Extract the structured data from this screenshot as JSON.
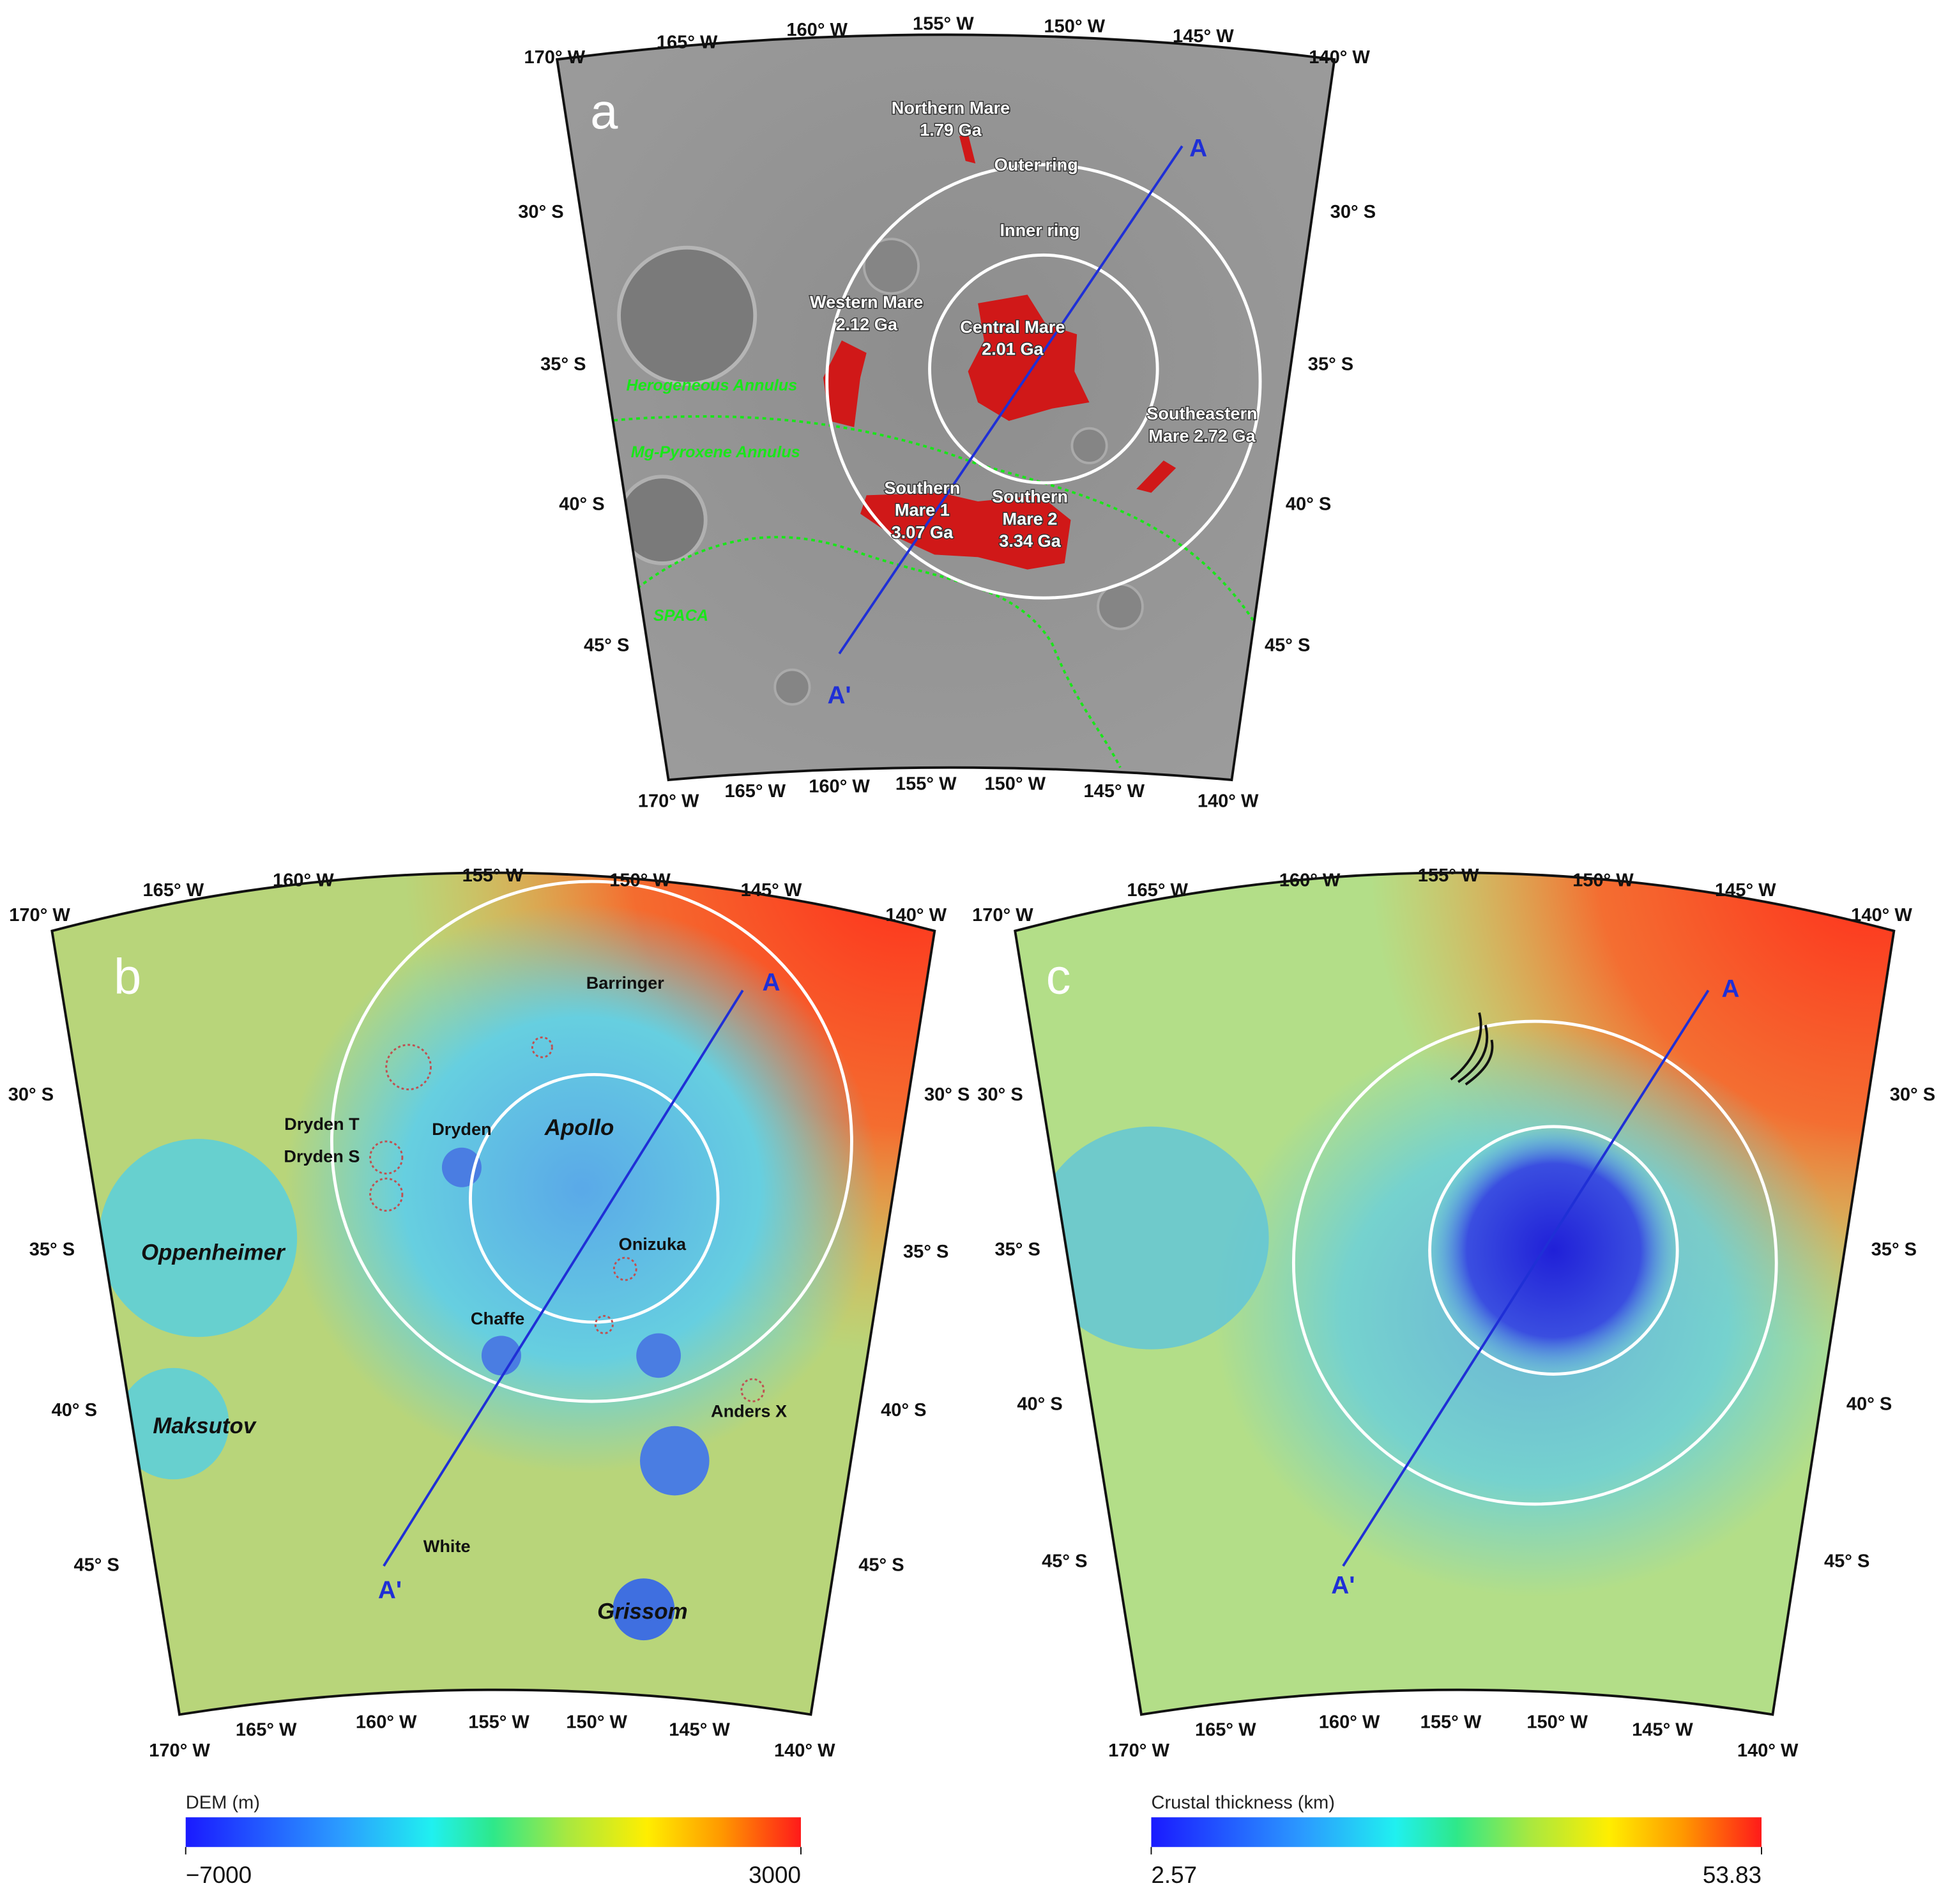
{
  "panels": [
    {
      "letter": "a",
      "lon_top": [
        "170° W",
        "165° W",
        "160° W",
        "155° W",
        "150° W",
        "145° W",
        "140° W"
      ],
      "lon_bottom": [
        "170° W",
        "165° W",
        "160° W",
        "155° W",
        "150° W",
        "145° W",
        "140° W"
      ],
      "lat_left": [
        "30° S",
        "35° S",
        "40° S",
        "45° S"
      ],
      "lat_right": [
        "30° S",
        "35° S",
        "40° S",
        "45° S"
      ],
      "labels": [
        [
          "Northern Mare",
          "1.79 Ga"
        ],
        [
          "Outer ring"
        ],
        [
          "Inner ring"
        ],
        [
          "Western Mare",
          "2.12 Ga"
        ],
        [
          "Central Mare",
          "2.01 Ga"
        ],
        [
          "Southeastern",
          "Mare 2.72 Ga"
        ],
        [
          "Southern",
          "Mare 1",
          "3.07 Ga"
        ],
        [
          "Southern",
          "Mare 2",
          "3.34 Ga"
        ],
        [
          "Herogeneous Annulus"
        ],
        [
          "Mg-Pyroxene Annulus"
        ],
        [
          "SPACA"
        ],
        [
          "A"
        ],
        [
          "A'"
        ]
      ]
    },
    {
      "letter": "b",
      "lon_top": [
        "170° W",
        "165° W",
        "160° W",
        "155° W",
        "150° W",
        "145° W",
        "140° W"
      ],
      "lon_bottom": [
        "170° W",
        "165° W",
        "160° W",
        "155° W",
        "150° W",
        "145° W",
        "140° W"
      ],
      "lat_left": [
        "30° S",
        "35° S",
        "40° S",
        "45° S"
      ],
      "lat_right": [
        "30° S",
        "35° S",
        "40° S",
        "45° S"
      ],
      "labels": [
        [
          "Barringer"
        ],
        [
          "A"
        ],
        [
          "Dryden T"
        ],
        [
          "Dryden S"
        ],
        [
          "Dryden"
        ],
        [
          "Apollo"
        ],
        [
          "Oppenheimer"
        ],
        [
          "Onizuka"
        ],
        [
          "Chaffe"
        ],
        [
          "Maksutov"
        ],
        [
          "Anders X"
        ],
        [
          "White"
        ],
        [
          "Grissom"
        ],
        [
          "A'"
        ]
      ]
    },
    {
      "letter": "c",
      "lon_top": [
        "170° W",
        "165° W",
        "160° W",
        "155° W",
        "150° W",
        "145° W",
        "140° W"
      ],
      "lon_bottom": [
        "170° W",
        "165° W",
        "160° W",
        "155° W",
        "150° W",
        "145° W",
        "140° W"
      ],
      "lat_left": [
        "30° S",
        "35° S",
        "40° S",
        "45° S"
      ],
      "lat_right": [
        "30° S",
        "35° S",
        "40° S",
        "45° S"
      ],
      "labels": [
        [
          "A"
        ],
        [
          "A'"
        ]
      ]
    }
  ],
  "colorbars": [
    {
      "title": "DEM (m)",
      "min": {
        "value": -7000,
        "label": "−7000"
      },
      "max": 3000
    },
    {
      "title": "Crustal thickness (km)",
      "min": 2.57,
      "max": 53.83
    }
  ]
}
